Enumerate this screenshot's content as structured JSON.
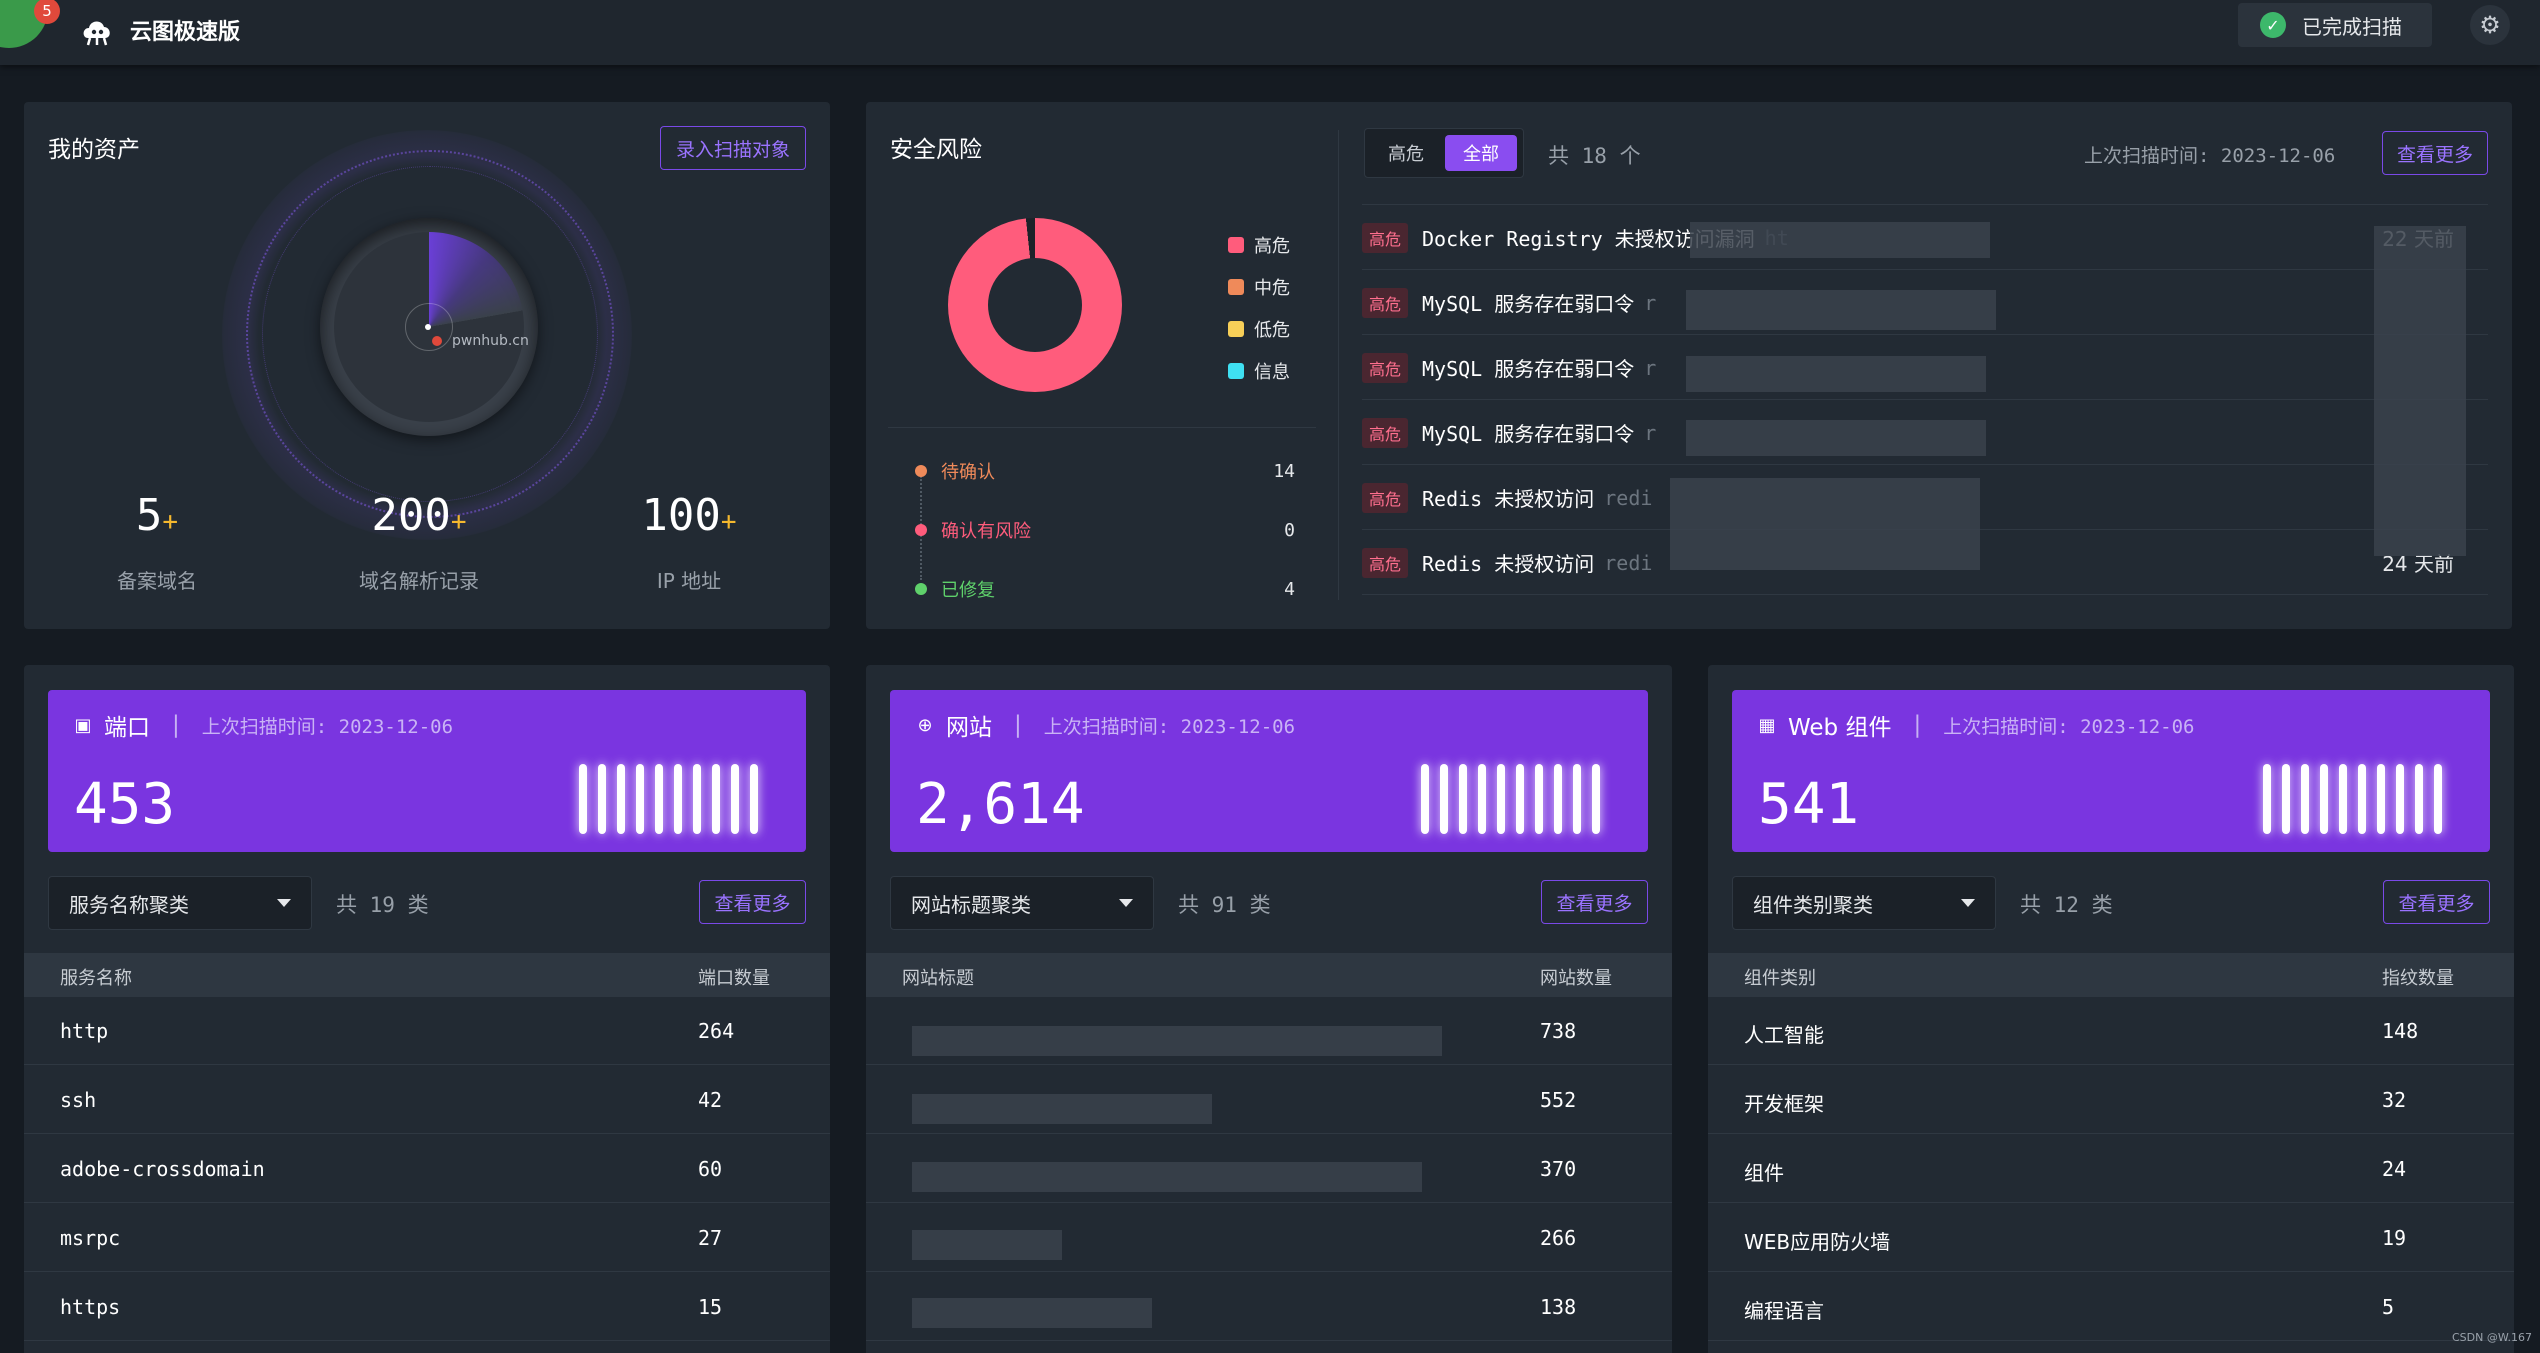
{
  "app": {
    "title": "云图极速版",
    "badge_count": "5"
  },
  "header": {
    "scan_status": "已完成扫描"
  },
  "assets": {
    "title": "我的资产",
    "add_button": "录入扫描对象",
    "radar_label": "pwnhub.cn",
    "stats": [
      {
        "value": "5",
        "plus": "+",
        "label": "备案域名"
      },
      {
        "value": "200",
        "plus": "+",
        "label": "域名解析记录"
      },
      {
        "value": "100",
        "plus": "+",
        "label": "IP 地址"
      }
    ]
  },
  "risk": {
    "title": "安全风险",
    "legend": [
      {
        "label": "高危",
        "color": "#ff5c7c"
      },
      {
        "label": "中危",
        "color": "#ef8a5a"
      },
      {
        "label": "低危",
        "color": "#f7cf58"
      },
      {
        "label": "信息",
        "color": "#3fe0f2"
      }
    ],
    "status": [
      {
        "label": "待确认",
        "value": "14",
        "color": "#ef8a5a"
      },
      {
        "label": "确认有风险",
        "value": "0",
        "color": "#ff5c7c"
      },
      {
        "label": "已修复",
        "value": "4",
        "color": "#5fd16b"
      }
    ],
    "tabs": [
      "高危",
      "全部"
    ],
    "total_text": "共 18 个",
    "last_scan": "上次扫描时间: 2023-12-06",
    "more_button": "查看更多",
    "items": [
      {
        "level": "高危",
        "name": "Docker Registry 未授权访问漏洞",
        "host": "ht",
        "time": "22 天前"
      },
      {
        "level": "高危",
        "name": "MySQL 服务存在弱口令",
        "host": "r",
        "time": ""
      },
      {
        "level": "高危",
        "name": "MySQL 服务存在弱口令",
        "host": "r",
        "time": ""
      },
      {
        "level": "高危",
        "name": "MySQL 服务存在弱口令",
        "host": "r",
        "time": ""
      },
      {
        "level": "高危",
        "name": "Redis 未授权访问",
        "host": "redi",
        "time": ""
      },
      {
        "level": "高危",
        "name": "Redis 未授权访问",
        "host": "redi",
        "time": "24 天前"
      }
    ]
  },
  "ports": {
    "title": "端口",
    "last_scan": "上次扫描时间: 2023-12-06",
    "total": "453",
    "select": "服务名称聚类",
    "count_text": "共 19 类",
    "more_button": "查看更多",
    "columns": [
      "服务名称",
      "端口数量"
    ],
    "rows": [
      {
        "name": "http",
        "count": "264"
      },
      {
        "name": "ssh",
        "count": "42"
      },
      {
        "name": "adobe-crossdomain",
        "count": "60"
      },
      {
        "name": "msrpc",
        "count": "27"
      },
      {
        "name": "https",
        "count": "15"
      }
    ]
  },
  "websites": {
    "title": "网站",
    "last_scan": "上次扫描时间: 2023-12-06",
    "total": "2,614",
    "select": "网站标题聚类",
    "count_text": "共 91 类",
    "more_button": "查看更多",
    "columns": [
      "网站标题",
      "网站数量"
    ],
    "rows": [
      {
        "name": "",
        "count": "738"
      },
      {
        "name": "",
        "count": "552"
      },
      {
        "name": "",
        "count": "370"
      },
      {
        "name": "",
        "count": "266"
      },
      {
        "name": "",
        "count": "138"
      }
    ]
  },
  "components": {
    "title": "Web 组件",
    "last_scan": "上次扫描时间: 2023-12-06",
    "total": "541",
    "select": "组件类别聚类",
    "count_text": "共 12 类",
    "more_button": "查看更多",
    "columns": [
      "组件类别",
      "指纹数量"
    ],
    "rows": [
      {
        "name": "人工智能",
        "count": "148"
      },
      {
        "name": "开发框架",
        "count": "32"
      },
      {
        "name": "组件",
        "count": "24"
      },
      {
        "name": "WEB应用防火墙",
        "count": "19"
      },
      {
        "name": "编程语言",
        "count": "5"
      }
    ]
  },
  "watermark": "CSDN @W.167"
}
